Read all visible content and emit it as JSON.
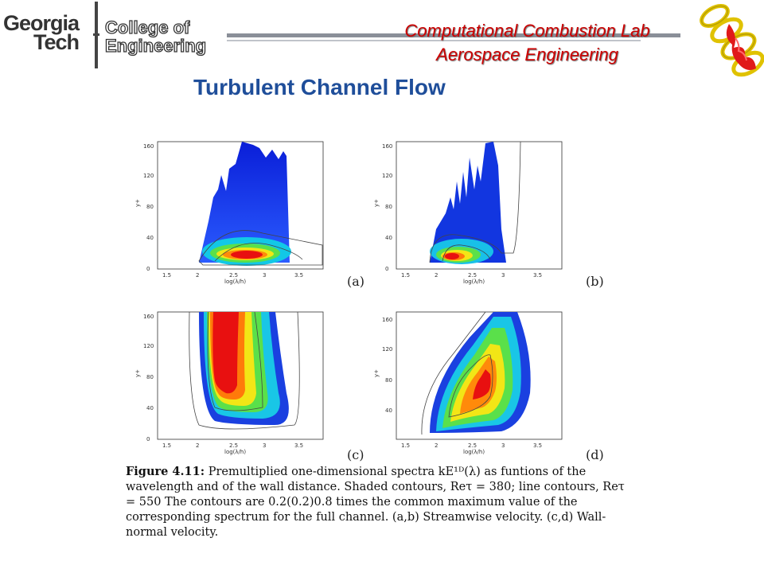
{
  "header": {
    "logo": {
      "line1": "Georgia",
      "line2": "Tech",
      "college_line1": "College of",
      "college_line2": "Engineering"
    },
    "lab_title": "Computational Combustion Lab",
    "lab_subtitle": "Aerospace Engineering"
  },
  "slide": {
    "title": "Turbulent Channel Flow"
  },
  "figure": {
    "panels": [
      {
        "label": "(a)",
        "xticks": [
          "1.5",
          "2",
          "2.5",
          "3",
          "3.5"
        ],
        "yticks": [
          "0",
          "40",
          "80",
          "120",
          "160"
        ],
        "xlabel": "log(λ/h)",
        "ylabel": "y+"
      },
      {
        "label": "(b)",
        "xticks": [
          "1.5",
          "2",
          "2.5",
          "3",
          "3.5"
        ],
        "yticks": [
          "0",
          "40",
          "80",
          "120",
          "160"
        ],
        "xlabel": "log(λ/h)",
        "ylabel": "y+"
      },
      {
        "label": "(c)",
        "xticks": [
          "1.5",
          "2",
          "2.5",
          "3",
          "3.5"
        ],
        "yticks": [
          "0",
          "40",
          "80",
          "120",
          "160"
        ],
        "xlabel": "log(λ/h)",
        "ylabel": "y+"
      },
      {
        "label": "(d)",
        "xticks": [
          "1.5",
          "2",
          "2.5",
          "3",
          "3.5"
        ],
        "yticks": [
          "40",
          "80",
          "120",
          "160"
        ],
        "xlabel": "log(λ/h)",
        "ylabel": "y+"
      }
    ],
    "caption": {
      "label": "Figure 4.11:",
      "text": "Premultiplied one-dimensional spectra kE¹ᴰ(λ) as funtions of the wavelength and of the wall distance. Shaded contours, Reτ = 380; line contours, Reτ = 550 The contours are 0.2(0.2)0.8 times the common maximum value of the corresponding spectrum for the full channel. (a,b) Streamwise velocity. (c,d) Wall-normal velocity."
    }
  }
}
